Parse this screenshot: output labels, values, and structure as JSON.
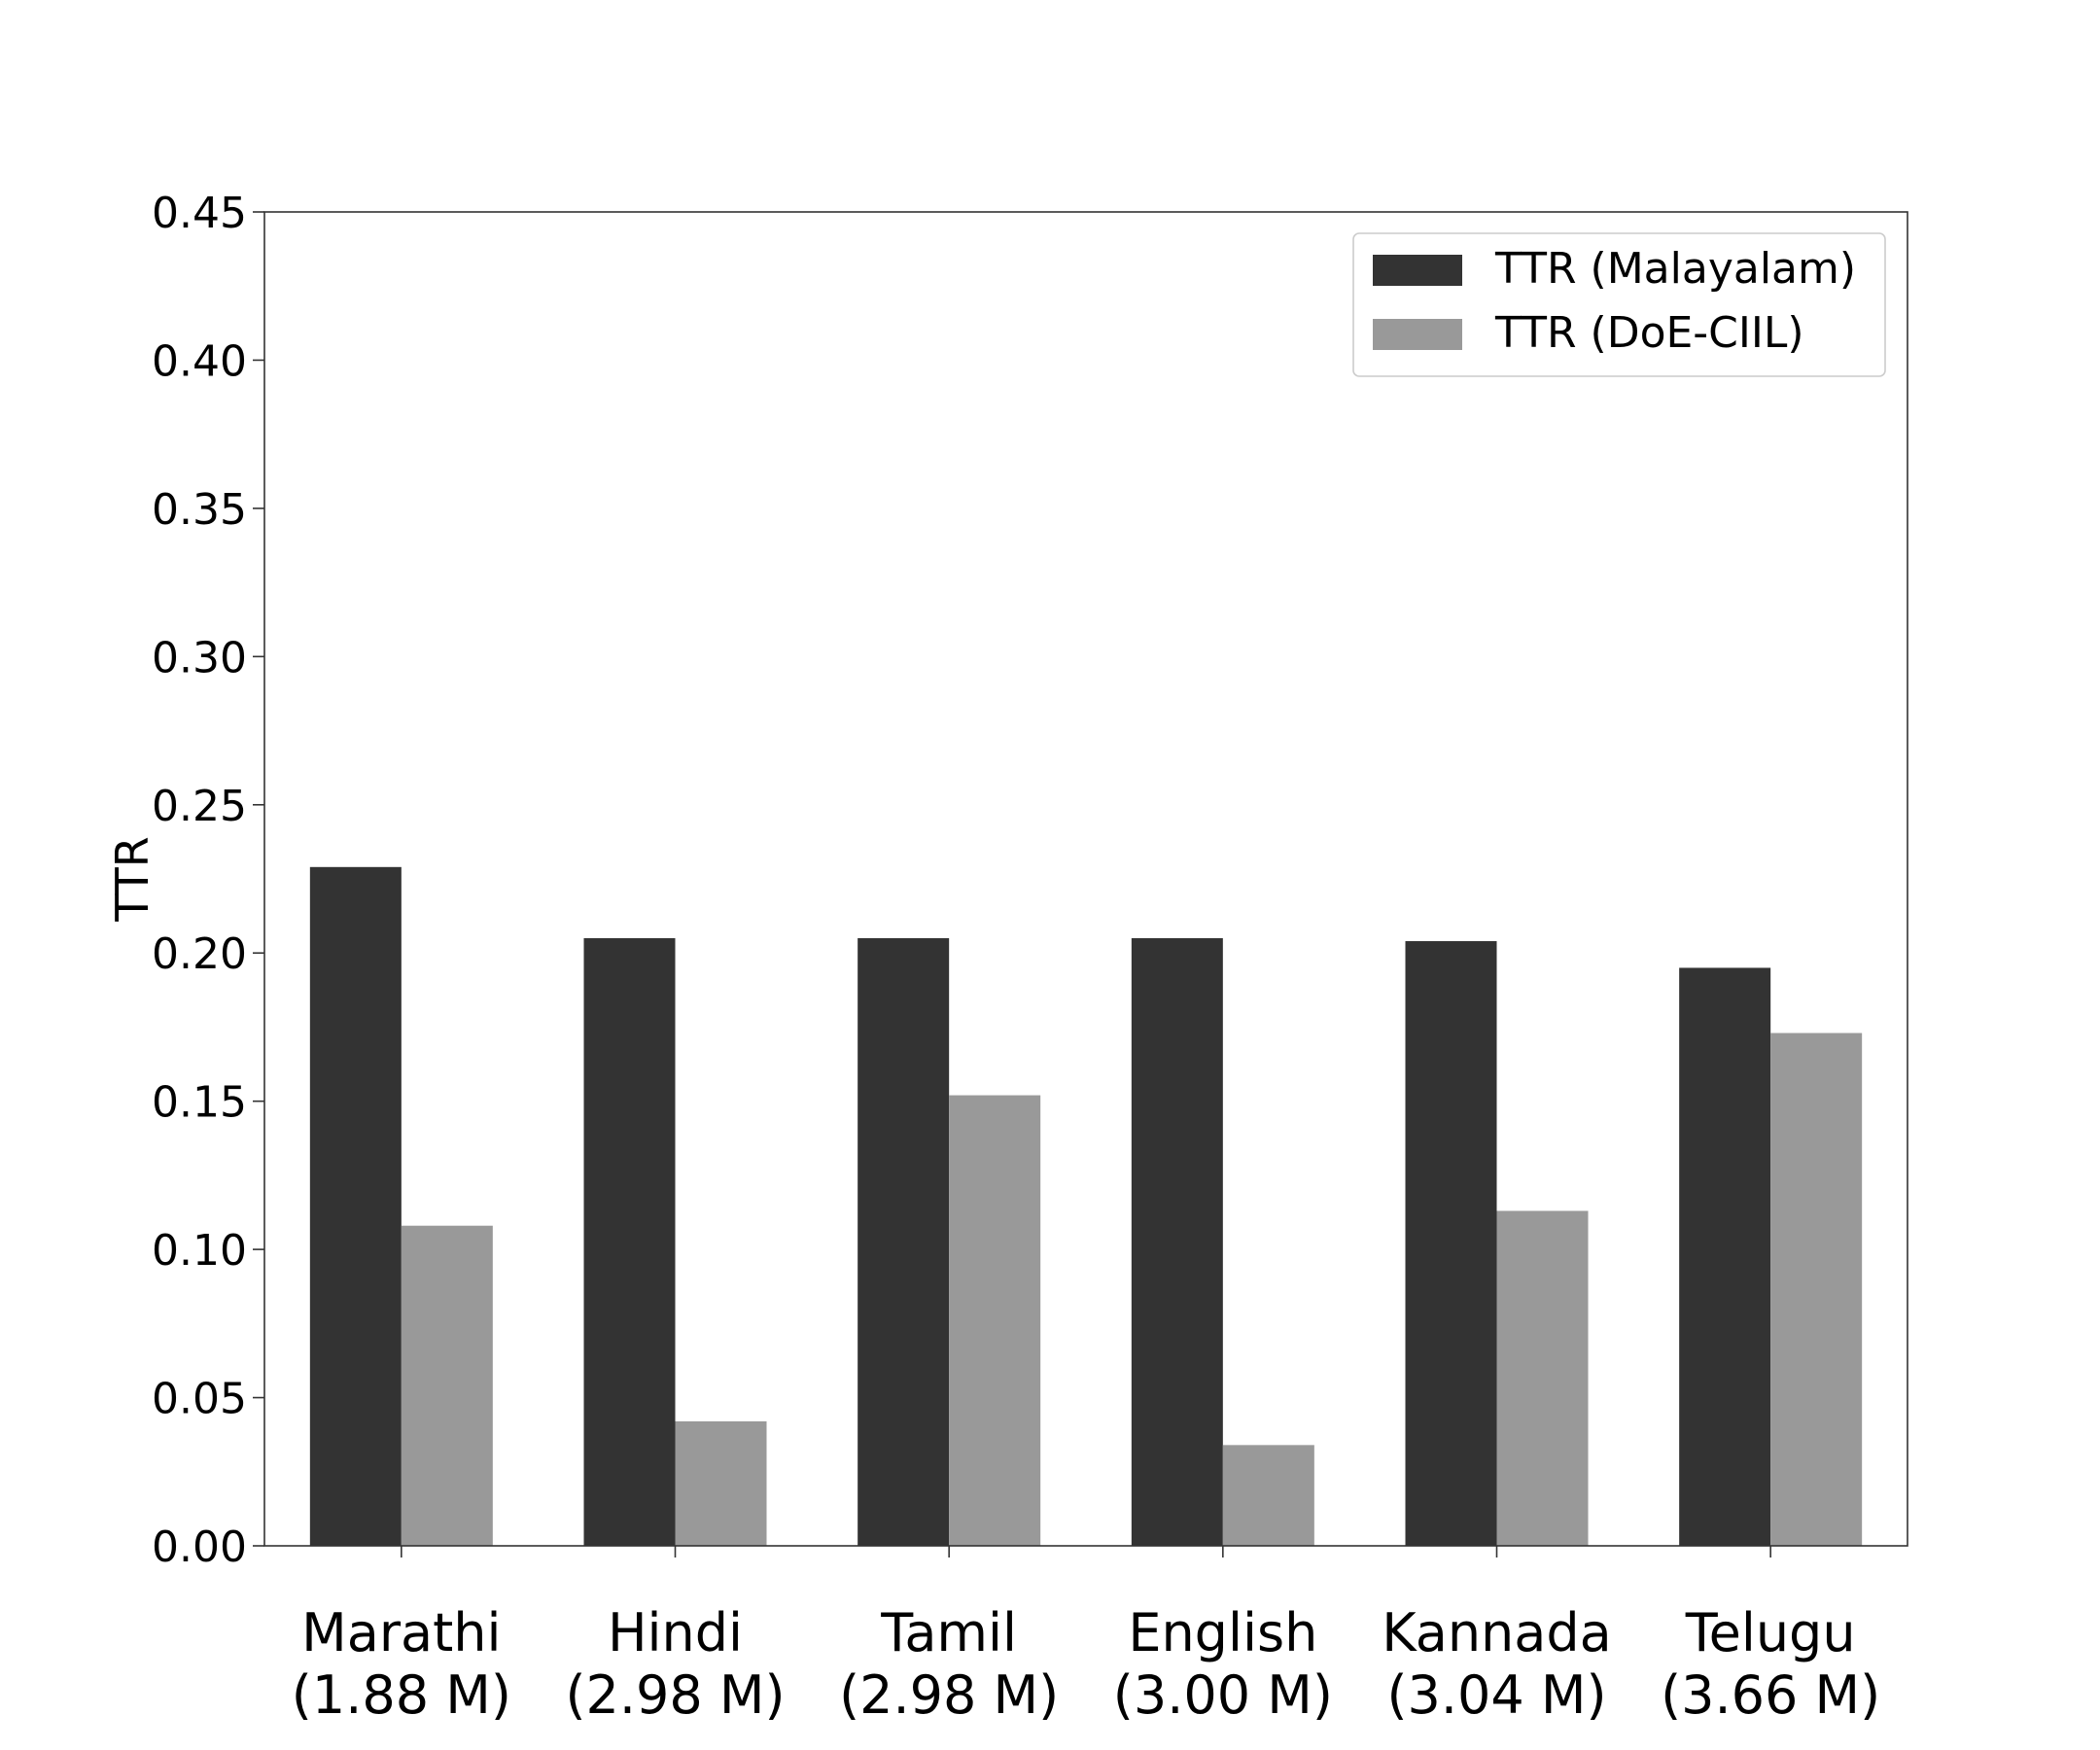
{
  "chart_data": {
    "type": "bar",
    "categories": [
      [
        "Marathi",
        "(1.88 M)"
      ],
      [
        "Hindi",
        "(2.98 M)"
      ],
      [
        "Tamil",
        "(2.98 M)"
      ],
      [
        "English",
        "(3.00 M)"
      ],
      [
        "Kannada",
        "(3.04 M)"
      ],
      [
        "Telugu",
        "(3.66 M)"
      ]
    ],
    "series": [
      {
        "name": "TTR (Malayalam)",
        "color": "#333333",
        "values": [
          0.229,
          0.205,
          0.205,
          0.205,
          0.204,
          0.195
        ]
      },
      {
        "name": "TTR (DoE-CIIL)",
        "color": "#999999",
        "values": [
          0.108,
          0.042,
          0.152,
          0.034,
          0.113,
          0.173
        ]
      }
    ],
    "ylabel": "TTR",
    "ylim": [
      0,
      0.45
    ],
    "yticks": [
      "0.00",
      "0.05",
      "0.10",
      "0.15",
      "0.20",
      "0.25",
      "0.30",
      "0.35",
      "0.40",
      "0.45"
    ],
    "grid": false,
    "legend_position": "top-right"
  }
}
